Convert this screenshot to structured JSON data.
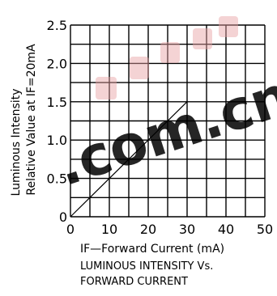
{
  "chart_data": {
    "type": "line",
    "xlabel": "IF—Forward Current (mA)",
    "ylabel_line1": "Luminous Intensity",
    "ylabel_line2": "Relative Value at IF=20mA",
    "caption_line1": "LUMINOUS INTENSITY Vs.",
    "caption_line2": "FORWARD CURRENT",
    "xlim": [
      0,
      50
    ],
    "ylim": [
      0,
      2.5
    ],
    "x_ticks": [
      "0",
      "10",
      "20",
      "30",
      "40",
      "50"
    ],
    "y_ticks": [
      "0",
      "0.5",
      "1.0",
      "1.5",
      "2.0",
      "2.5"
    ],
    "grid": true,
    "series": [
      {
        "x": [
          0,
          30
        ],
        "y": [
          0,
          1.5
        ]
      }
    ]
  },
  "watermark": {
    "domain_text": ".com.cn",
    "color": "#e0242a"
  },
  "colors": {
    "axis": "#000000",
    "grid": "#000000",
    "line": "#000000"
  }
}
